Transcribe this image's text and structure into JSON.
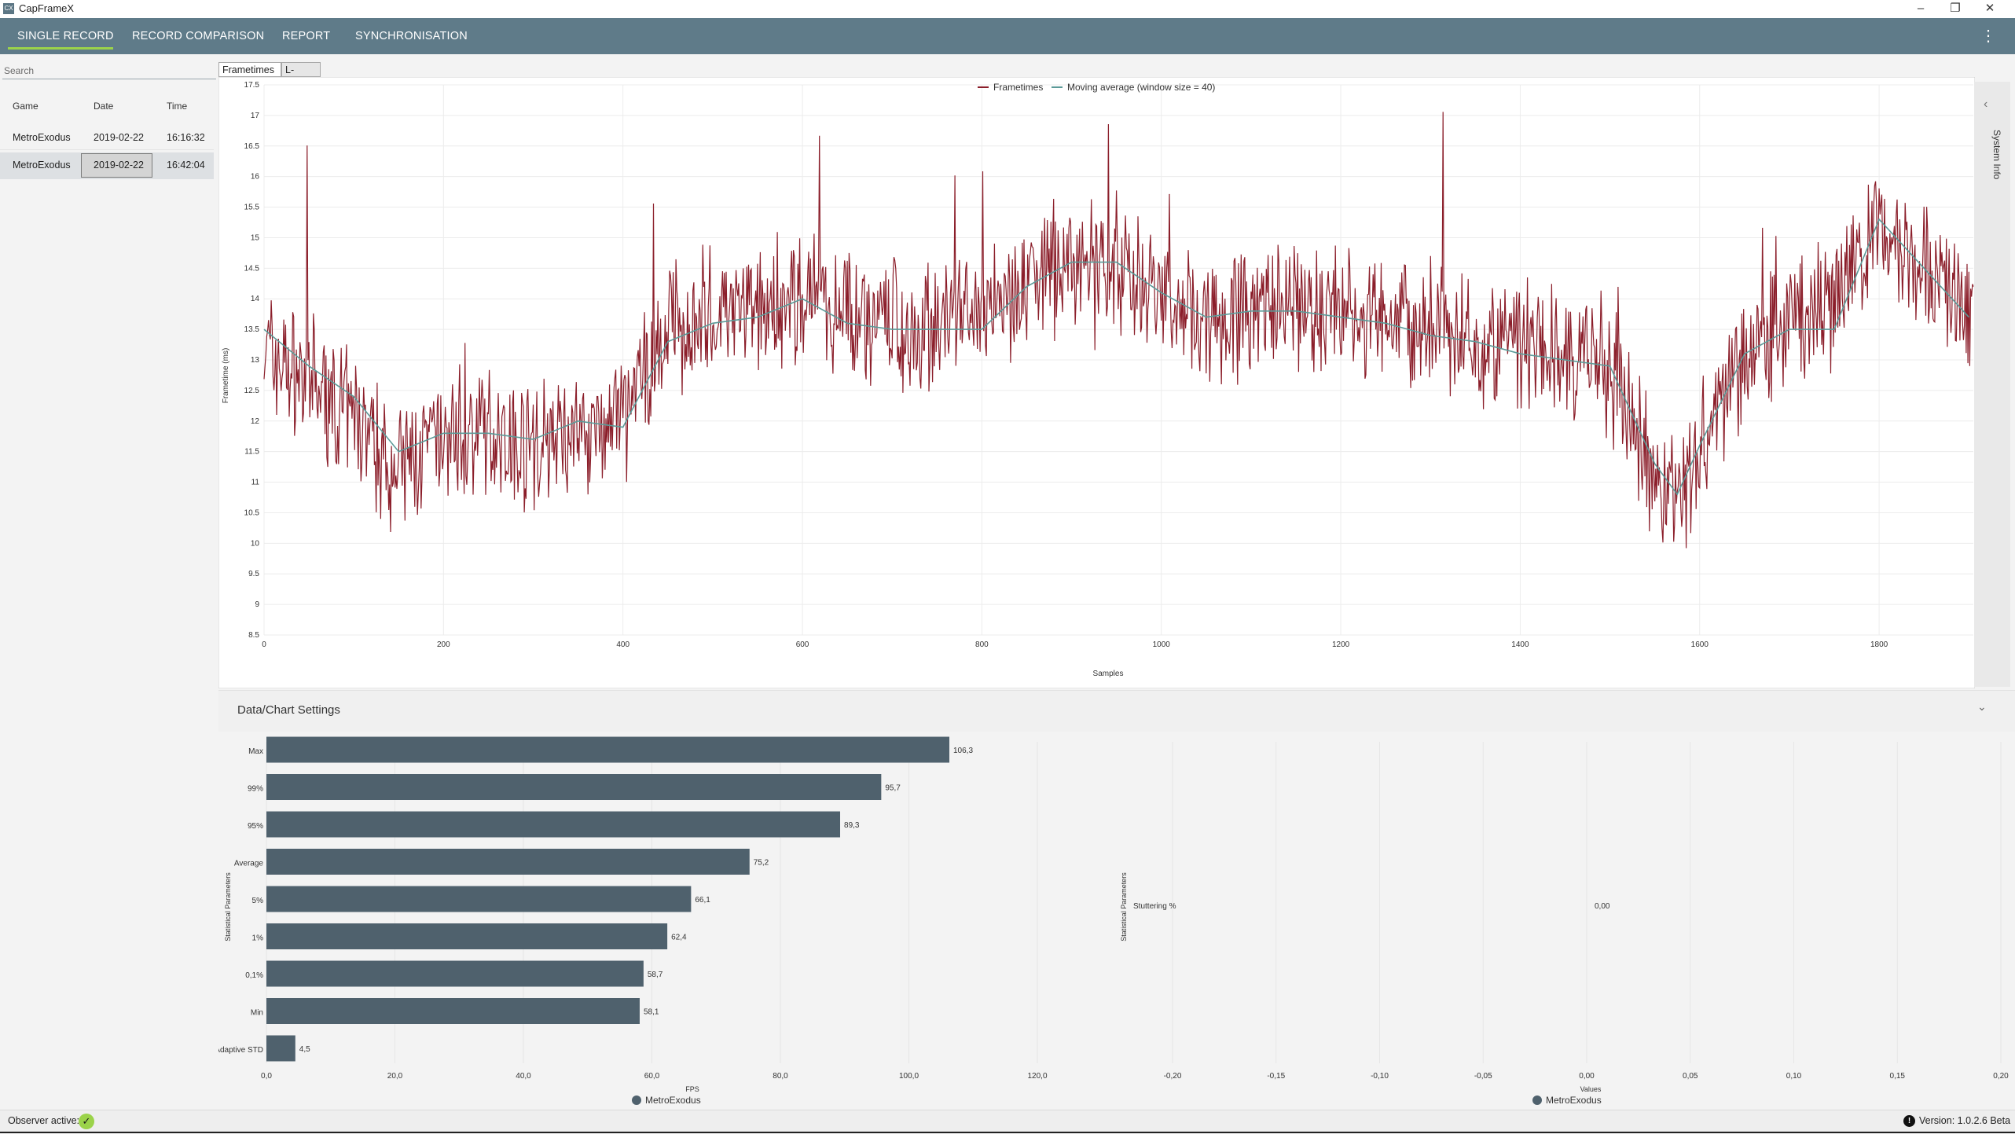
{
  "window": {
    "title": "CapFrameX",
    "icon": "CX",
    "minimize_icon": "minimize-icon",
    "restore_icon": "restore-icon",
    "close_icon": "close-icon"
  },
  "nav": {
    "tabs": [
      "SINGLE RECORD",
      "RECORD COMPARISON",
      "REPORT",
      "SYNCHRONISATION"
    ],
    "active_tab": "SINGLE RECORD",
    "menu_icon": "more-vertical-icon"
  },
  "records": {
    "search_placeholder": "Search",
    "columns": [
      "Game",
      "Date",
      "Time"
    ],
    "rows": [
      {
        "game": "MetroExodus",
        "date": "2019-02-22",
        "time": "16:16:32"
      },
      {
        "game": "MetroExodus",
        "date": "2019-02-22",
        "time": "16:42:04"
      }
    ]
  },
  "chart_tabs": [
    "Frametimes",
    "L-shape"
  ],
  "system_info": {
    "label": "System Info",
    "icon": "chevron-left-icon"
  },
  "settings": {
    "title": "Data/Chart Settings",
    "icon": "chevron-down-icon"
  },
  "colors": {
    "frametimes": "#8b1e2a",
    "moving_average": "#5b9a98",
    "bars": "#4f616d",
    "nav": "#5f7b89",
    "nav_accent": "#9bd34a"
  },
  "status": {
    "observer_label": "Observer active:",
    "observer_icon": "check-icon",
    "version_icon": "info-icon",
    "version": "Version: 1.0.2.6 Beta"
  },
  "chart_data": [
    {
      "type": "line",
      "title": "",
      "xlabel": "Samples",
      "ylabel": "Frametime (ms)",
      "xlim": [
        0,
        1905
      ],
      "ylim": [
        8.5,
        17.5
      ],
      "x_ticks": [
        0,
        200,
        400,
        600,
        800,
        1000,
        1200,
        1400,
        1600,
        1800
      ],
      "y_ticks": [
        "8.5",
        "9",
        "9.5",
        "10",
        "10.5",
        "11",
        "11.5",
        "12",
        "12.5",
        "13",
        "13.5",
        "14",
        "14.5",
        "15",
        "15.5",
        "16",
        "16.5",
        "17",
        "17.5"
      ],
      "legend": "top-center",
      "grid": true,
      "series": [
        {
          "name": "Frametimes",
          "x": [
            0,
            50,
            100,
            150,
            200,
            250,
            300,
            350,
            400,
            450,
            500,
            550,
            600,
            650,
            700,
            750,
            800,
            850,
            900,
            950,
            1000,
            1050,
            1100,
            1150,
            1200,
            1250,
            1300,
            1350,
            1400,
            1450,
            1500,
            1550,
            1575,
            1600,
            1650,
            1700,
            1750,
            1800,
            1850,
            1900
          ],
          "y": [
            13.2,
            12.6,
            12.0,
            11.2,
            11.7,
            11.8,
            11.6,
            11.8,
            12.0,
            13.5,
            13.8,
            13.8,
            14.0,
            13.8,
            13.6,
            13.6,
            13.7,
            14.3,
            14.6,
            14.6,
            14.1,
            13.7,
            13.8,
            13.8,
            13.8,
            13.6,
            13.5,
            13.3,
            13.2,
            13.0,
            12.9,
            11.2,
            10.6,
            11.6,
            13.2,
            13.6,
            13.8,
            15.2,
            14.6,
            13.7
          ]
        },
        {
          "name": "Moving average (window size = 40)",
          "x": [
            0,
            50,
            100,
            150,
            200,
            250,
            300,
            350,
            400,
            450,
            500,
            550,
            600,
            650,
            700,
            750,
            800,
            850,
            900,
            950,
            1000,
            1050,
            1100,
            1150,
            1200,
            1250,
            1300,
            1350,
            1400,
            1450,
            1500,
            1550,
            1575,
            1600,
            1650,
            1700,
            1750,
            1800,
            1850,
            1900
          ],
          "y": [
            13.5,
            12.9,
            12.4,
            11.5,
            11.8,
            11.8,
            11.7,
            12.0,
            11.9,
            13.3,
            13.6,
            13.7,
            14.0,
            13.6,
            13.5,
            13.5,
            13.5,
            14.2,
            14.6,
            14.6,
            14.1,
            13.7,
            13.8,
            13.8,
            13.7,
            13.6,
            13.4,
            13.3,
            13.1,
            13.0,
            12.9,
            11.3,
            10.8,
            11.6,
            13.1,
            13.5,
            13.5,
            15.3,
            14.5,
            13.7
          ]
        }
      ]
    },
    {
      "type": "bar",
      "orientation": "horizontal",
      "title": "",
      "xlabel": "FPS",
      "ylabel": "Statistical Parameters",
      "categories": [
        "Max",
        "99%",
        "95%",
        "Average",
        "5%",
        "1%",
        "0,1%",
        "Min",
        "Adaptive STD"
      ],
      "values": [
        106.3,
        95.7,
        89.3,
        75.2,
        66.1,
        62.4,
        58.7,
        58.1,
        4.5
      ],
      "value_labels": [
        "106,3",
        "95,7",
        "89,3",
        "75,2",
        "66,1",
        "62,4",
        "58,7",
        "58,1",
        "4,5"
      ],
      "xlim": [
        0,
        120
      ],
      "x_ticks": [
        "0,0",
        "20,0",
        "40,0",
        "60,0",
        "80,0",
        "100,0",
        "120,0"
      ],
      "legend": [
        "MetroExodus"
      ],
      "legend_position": "bottom-center"
    },
    {
      "type": "bar",
      "orientation": "horizontal",
      "title": "",
      "xlabel": "Values",
      "ylabel": "Statistical Parameters",
      "categories": [
        "Stuttering %"
      ],
      "values": [
        0.0
      ],
      "value_labels": [
        "0,00"
      ],
      "xlim": [
        -0.2,
        0.2
      ],
      "x_ticks": [
        "-0,20",
        "-0,15",
        "-0,10",
        "-0,05",
        "0,00",
        "0,05",
        "0,10",
        "0,15",
        "0,20"
      ],
      "legend": [
        "MetroExodus"
      ],
      "legend_position": "bottom-center"
    }
  ]
}
